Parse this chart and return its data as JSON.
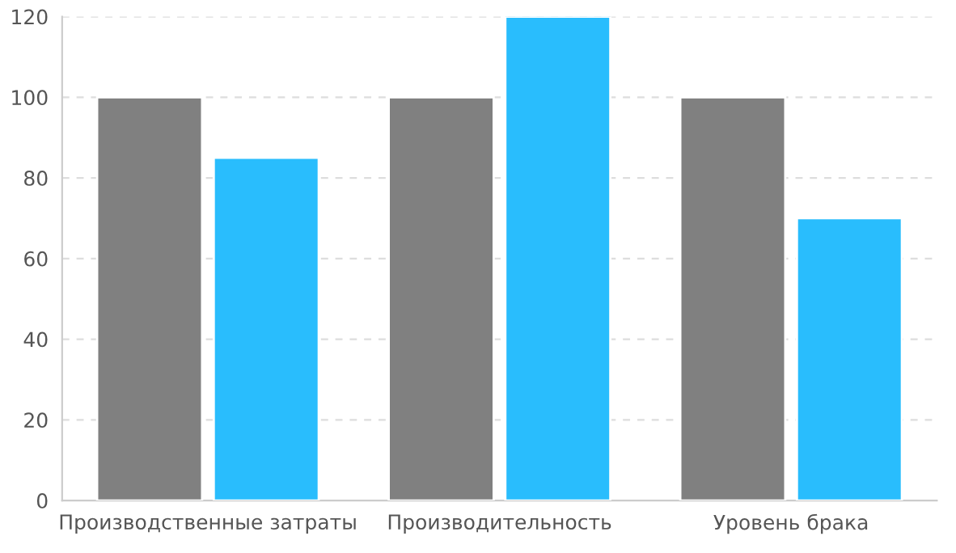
{
  "chart_data": {
    "type": "bar",
    "categories": [
      "Производственные затраты",
      "Производительность",
      "Уровень брака"
    ],
    "series": [
      {
        "color": "#808080",
        "values": [
          100,
          100,
          100
        ]
      },
      {
        "color": "#29bdfd",
        "values": [
          85,
          120,
          70
        ]
      }
    ],
    "ylim": [
      0,
      120
    ],
    "yticks": [
      0,
      20,
      40,
      60,
      80,
      100,
      120
    ],
    "grid": "y"
  }
}
